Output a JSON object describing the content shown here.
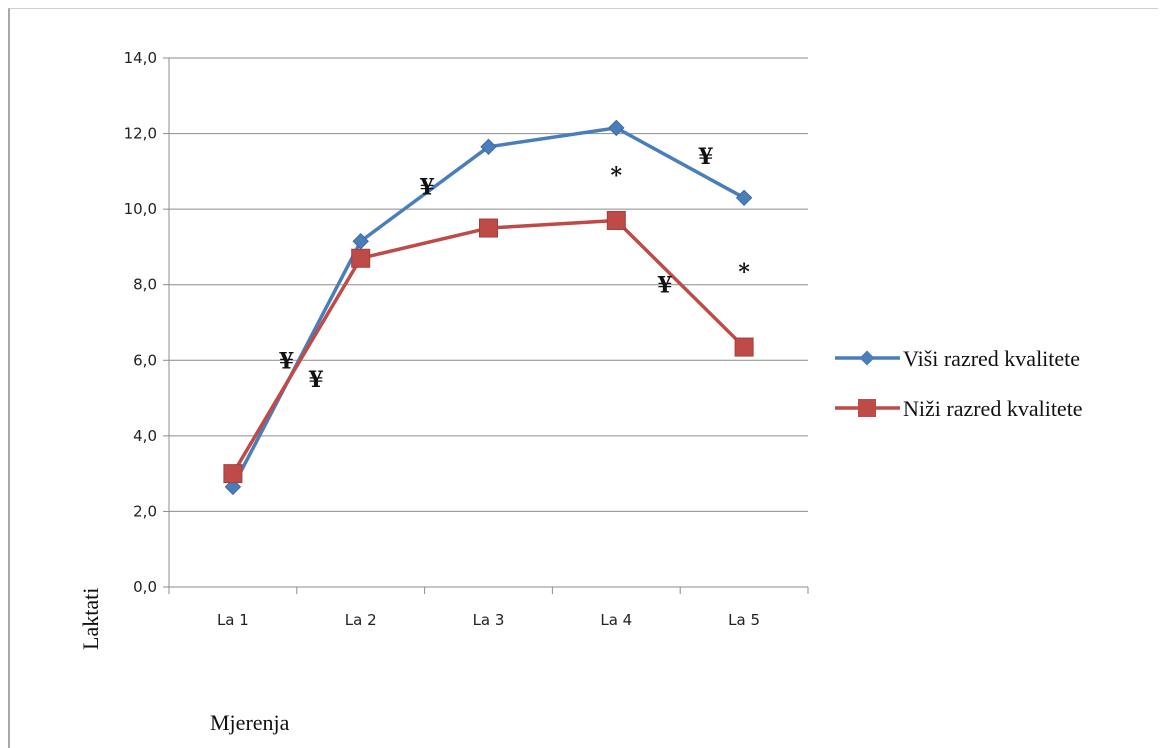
{
  "chart_data": {
    "type": "line",
    "categories": [
      "La 1",
      "La 2",
      "La 3",
      "La 4",
      "La 5"
    ],
    "series": [
      {
        "name": "Viši razred kvalitete",
        "values": [
          2.65,
          9.15,
          11.65,
          12.15,
          10.3
        ],
        "color": "#4a7ebb",
        "marker": "diamond"
      },
      {
        "name": "Niži razred kvalitete",
        "values": [
          3.0,
          8.7,
          9.5,
          9.7,
          6.35
        ],
        "color": "#be4b48",
        "marker": "square"
      }
    ],
    "xlabel": "Mjerenja",
    "ylabel": "Laktati",
    "ylim": [
      0,
      14
    ],
    "yticks": [
      "0,0",
      "2,0",
      "4,0",
      "6,0",
      "8,0",
      "10,0",
      "12,0",
      "14,0"
    ],
    "grid": true,
    "legend_position": "right",
    "annotations": [
      {
        "text": "¥",
        "x": 1.42,
        "y": 6.0
      },
      {
        "text": "¥",
        "x": 1.65,
        "y": 5.5
      },
      {
        "text": "¥",
        "x": 2.52,
        "y": 10.6
      },
      {
        "text": "*",
        "x": 4.0,
        "y": 10.9
      },
      {
        "text": "¥",
        "x": 4.7,
        "y": 11.4
      },
      {
        "text": "¥",
        "x": 4.38,
        "y": 8.0
      },
      {
        "text": "*",
        "x": 5.0,
        "y": 8.35
      }
    ]
  }
}
